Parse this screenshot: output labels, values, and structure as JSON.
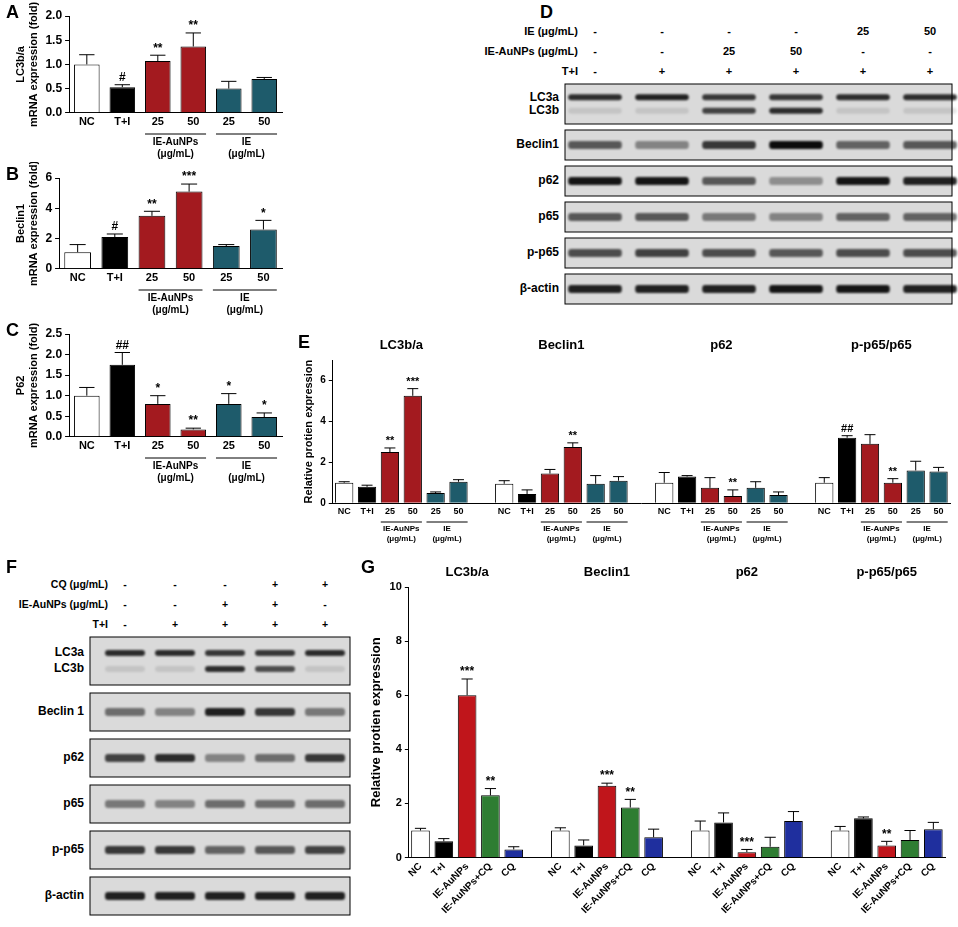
{
  "chart_data": [
    {
      "panel": "A",
      "type": "bar",
      "ylabel": [
        "LC3b/a",
        "mRNA expression (fold)"
      ],
      "categories": [
        "NC",
        "T+I",
        "25",
        "50",
        "25",
        "50"
      ],
      "values": [
        1.0,
        0.53,
        1.07,
        1.37,
        0.5,
        0.7
      ],
      "errors": [
        0.2,
        0.05,
        0.12,
        0.28,
        0.15,
        0.03
      ],
      "annotations": [
        null,
        "#",
        "**",
        "**",
        null,
        null
      ],
      "colors": [
        "#ffffff",
        "#000000",
        "#a31a1f",
        "#a31a1f",
        "#1e5b6b",
        "#1e5b6b"
      ],
      "subgroups": [
        {
          "label": [
            "IE-AuNPs",
            "(μg/mL)"
          ],
          "span": [
            2,
            3
          ]
        },
        {
          "label": [
            "IE",
            "(μg/mL)"
          ],
          "span": [
            4,
            5
          ]
        }
      ],
      "ylim": [
        0,
        2.0
      ],
      "yticks": [
        {
          "value": 0,
          "label": "0.0"
        },
        0.5,
        {
          "value": 1,
          "label": "1.0"
        },
        1.5,
        {
          "value": 2,
          "label": "2.0"
        }
      ],
      "grid": false
    },
    {
      "panel": "B",
      "type": "bar",
      "ylabel": [
        "Beclin1",
        "mRNA expression (fold)"
      ],
      "categories": [
        "NC",
        "T+I",
        "25",
        "50",
        "25",
        "50"
      ],
      "values": [
        1.1,
        2.1,
        3.5,
        5.1,
        1.5,
        2.6
      ],
      "errors": [
        0.5,
        0.2,
        0.3,
        0.5,
        0.1,
        0.6
      ],
      "annotations": [
        null,
        "#",
        "**",
        "***",
        null,
        "*"
      ],
      "colors": [
        "#ffffff",
        "#000000",
        "#a31a1f",
        "#a31a1f",
        "#1e5b6b",
        "#1e5b6b"
      ],
      "subgroups": [
        {
          "label": [
            "IE-AuNPs",
            "(μg/mL)"
          ],
          "span": [
            2,
            3
          ]
        },
        {
          "label": [
            "IE",
            "(μg/mL)"
          ],
          "span": [
            4,
            5
          ]
        }
      ],
      "ylim": [
        0,
        6
      ],
      "yticks": [
        0,
        2,
        4,
        6
      ],
      "grid": false
    },
    {
      "panel": "C",
      "type": "bar",
      "ylabel": [
        "P62",
        "mRNA expression (fold)"
      ],
      "categories": [
        "NC",
        "T+I",
        "25",
        "50",
        "25",
        "50"
      ],
      "values": [
        1.0,
        1.75,
        0.8,
        0.18,
        0.8,
        0.48
      ],
      "errors": [
        0.2,
        0.3,
        0.2,
        0.03,
        0.25,
        0.1
      ],
      "annotations": [
        null,
        "##",
        "*",
        "**",
        "*",
        "*"
      ],
      "colors": [
        "#ffffff",
        "#000000",
        "#a31a1f",
        "#a31a1f",
        "#1e5b6b",
        "#1e5b6b"
      ],
      "subgroups": [
        {
          "label": [
            "IE-AuNPs",
            "(μg/mL)"
          ],
          "span": [
            2,
            3
          ]
        },
        {
          "label": [
            "IE",
            "(μg/mL)"
          ],
          "span": [
            4,
            5
          ]
        }
      ],
      "ylim": [
        0,
        2.5
      ],
      "yticks": [
        {
          "value": 0,
          "label": "0.0"
        },
        0.5,
        {
          "value": 1,
          "label": "1.0"
        },
        1.5,
        {
          "value": 2,
          "label": "2.0"
        },
        2.5
      ],
      "grid": false
    },
    {
      "panel": "E",
      "type": "bar",
      "ylabel": "Relative protien expression",
      "categories": [
        "NC",
        "T+I",
        "25",
        "50",
        "25",
        "50",
        null,
        "NC",
        "T+I",
        "25",
        "50",
        "25",
        "50",
        null,
        "NC",
        "T+I",
        "25",
        "50",
        "25",
        "50",
        null,
        "NC",
        "T+I",
        "25",
        "50",
        "25",
        "50"
      ],
      "values": [
        1.0,
        0.8,
        2.5,
        5.25,
        0.5,
        1.05,
        null,
        0.95,
        0.45,
        1.45,
        2.75,
        0.95,
        1.1,
        null,
        1.0,
        1.3,
        0.75,
        0.35,
        0.75,
        0.4,
        null,
        1.0,
        3.2,
        2.9,
        1.0,
        1.6,
        1.55
      ],
      "errors": [
        0.05,
        0.08,
        0.2,
        0.35,
        0.05,
        0.1,
        null,
        0.15,
        0.2,
        0.2,
        0.2,
        0.4,
        0.2,
        null,
        0.5,
        0.05,
        0.5,
        0.3,
        0.3,
        0.15,
        null,
        0.25,
        0.1,
        0.45,
        0.2,
        0.45,
        0.2
      ],
      "annotations": [
        null,
        null,
        "**",
        "***",
        null,
        null,
        null,
        null,
        null,
        null,
        "**",
        null,
        null,
        null,
        null,
        null,
        null,
        "**",
        null,
        null,
        null,
        null,
        "##",
        null,
        "**",
        null,
        null
      ],
      "colors": [
        "#ffffff",
        "#000000",
        "#a31a1f",
        "#a31a1f",
        "#1e5b6b",
        "#1e5b6b",
        null,
        "#ffffff",
        "#000000",
        "#a31a1f",
        "#a31a1f",
        "#1e5b6b",
        "#1e5b6b",
        null,
        "#ffffff",
        "#000000",
        "#a31a1f",
        "#a31a1f",
        "#1e5b6b",
        "#1e5b6b",
        null,
        "#ffffff",
        "#000000",
        "#a31a1f",
        "#a31a1f",
        "#1e5b6b",
        "#1e5b6b"
      ],
      "groups": [
        {
          "label": "LC3b/a",
          "span": [
            0,
            5
          ]
        },
        {
          "label": "Beclin1",
          "span": [
            7,
            12
          ]
        },
        {
          "label": "p62",
          "span": [
            14,
            19
          ]
        },
        {
          "label": "p-p65/p65",
          "span": [
            21,
            26
          ]
        }
      ],
      "subgroups": [
        {
          "label": [
            "IE-AuNPs",
            "(μg/mL)"
          ],
          "span": [
            2,
            3
          ]
        },
        {
          "label": [
            "IE",
            "(μg/mL)"
          ],
          "span": [
            4,
            5
          ]
        },
        {
          "label": [
            "IE-AuNPs",
            "(μg/mL)"
          ],
          "span": [
            9,
            10
          ]
        },
        {
          "label": [
            "IE",
            "(μg/mL)"
          ],
          "span": [
            11,
            12
          ]
        },
        {
          "label": [
            "IE-AuNPs",
            "(μg/mL)"
          ],
          "span": [
            16,
            17
          ]
        },
        {
          "label": [
            "IE",
            "(μg/mL)"
          ],
          "span": [
            18,
            19
          ]
        },
        {
          "label": [
            "IE-AuNPs",
            "(μg/mL)"
          ],
          "span": [
            23,
            24
          ]
        },
        {
          "label": [
            "IE",
            "(μg/mL)"
          ],
          "span": [
            25,
            26
          ]
        }
      ],
      "ylim": [
        0,
        7
      ],
      "yticks": [
        0,
        2,
        4,
        6
      ],
      "grid": false
    },
    {
      "panel": "G",
      "type": "bar",
      "ylabel": "Relative protien expression",
      "categories": [
        "NC",
        "T+I",
        "IE-AuNPs",
        "IE-AuNPs+CQ",
        "CQ",
        null,
        "NC",
        "T+I",
        "IE-AuNPs",
        "IE-AuNPs+CQ",
        "CQ",
        null,
        "NC",
        "T+I",
        "IE-AuNPs",
        "IE-AuNPs+CQ",
        "CQ",
        null,
        "NC",
        "T+I",
        "IE-AuNPs",
        "IE-AuNPs+CQ",
        "CQ"
      ],
      "values": [
        1.0,
        0.6,
        6.0,
        2.3,
        0.3,
        null,
        1.0,
        0.45,
        2.65,
        1.85,
        0.75,
        null,
        1.0,
        1.3,
        0.2,
        0.4,
        1.35,
        null,
        1.0,
        1.45,
        0.45,
        0.65,
        1.05
      ],
      "errors": [
        0.08,
        0.1,
        0.6,
        0.25,
        0.1,
        null,
        0.1,
        0.2,
        0.1,
        0.3,
        0.3,
        null,
        0.35,
        0.35,
        0.1,
        0.35,
        0.35,
        null,
        0.15,
        0.05,
        0.15,
        0.35,
        0.25
      ],
      "annotations": [
        null,
        null,
        "***",
        "**",
        null,
        null,
        null,
        null,
        "***",
        "**",
        null,
        null,
        null,
        null,
        "***",
        null,
        null,
        null,
        null,
        null,
        "**",
        null,
        null
      ],
      "colors": [
        "#ffffff",
        "#000000",
        "#c0151b",
        "#2e7d32",
        "#1f2f9e",
        null,
        "#ffffff",
        "#000000",
        "#c0151b",
        "#2e7d32",
        "#1f2f9e",
        null,
        "#ffffff",
        "#000000",
        "#c0151b",
        "#2e7d32",
        "#1f2f9e",
        null,
        "#ffffff",
        "#000000",
        "#c0151b",
        "#2e7d32",
        "#1f2f9e"
      ],
      "groups": [
        {
          "label": "LC3b/a",
          "span": [
            0,
            4
          ]
        },
        {
          "label": "Beclin1",
          "span": [
            6,
            10
          ]
        },
        {
          "label": "p62",
          "span": [
            12,
            16
          ]
        },
        {
          "label": "p-p65/p65",
          "span": [
            18,
            22
          ]
        }
      ],
      "ylim": [
        0,
        10
      ],
      "yticks": [
        0,
        2,
        4,
        6,
        8,
        10
      ],
      "grid": false
    }
  ],
  "blots": [
    {
      "panel": "D",
      "conditions": [
        {
          "label": "IE (μg/mL)",
          "values": [
            "-",
            "-",
            "-",
            "-",
            "25",
            "50"
          ]
        },
        {
          "label": "IE-AuNPs (μg/mL)",
          "values": [
            "-",
            "-",
            "25",
            "50",
            "-",
            "-"
          ]
        },
        {
          "label": "T+I",
          "values": [
            "-",
            "+",
            "+",
            "+",
            "+",
            "+"
          ]
        }
      ],
      "rows": [
        {
          "labels": [
            "LC3a",
            "LC3b"
          ],
          "bands": [
            [
              0.8,
              0.85,
              0.75,
              0.75,
              0.8,
              0.8
            ],
            [
              0.1,
              0.1,
              0.7,
              0.8,
              0.1,
              0.1
            ]
          ]
        },
        {
          "labels": [
            "Beclin1"
          ],
          "bands": [
            [
              0.6,
              0.4,
              0.75,
              0.95,
              0.55,
              0.6
            ]
          ]
        },
        {
          "labels": [
            "p62"
          ],
          "bands": [
            [
              0.9,
              0.9,
              0.6,
              0.35,
              0.9,
              0.85
            ]
          ]
        },
        {
          "labels": [
            "p65"
          ],
          "bands": [
            [
              0.6,
              0.6,
              0.45,
              0.4,
              0.55,
              0.55
            ]
          ]
        },
        {
          "labels": [
            "p-p65"
          ],
          "bands": [
            [
              0.65,
              0.7,
              0.65,
              0.6,
              0.65,
              0.65
            ]
          ]
        },
        {
          "labels": [
            "β-actin"
          ],
          "bands": [
            [
              0.85,
              0.85,
              0.85,
              0.9,
              0.9,
              0.85
            ]
          ]
        }
      ]
    },
    {
      "panel": "F",
      "conditions": [
        {
          "label": "CQ (μg/mL)",
          "values": [
            "-",
            "-",
            "-",
            "+",
            "+"
          ]
        },
        {
          "label": "IE-AuNPs (μg/mL)",
          "values": [
            "-",
            "-",
            "+",
            "+",
            "-"
          ]
        },
        {
          "label": "T+I",
          "values": [
            "-",
            "+",
            "+",
            "+",
            "+"
          ]
        }
      ],
      "rows": [
        {
          "labels": [
            "LC3a",
            "LC3b"
          ],
          "bands": [
            [
              0.8,
              0.8,
              0.75,
              0.75,
              0.8
            ],
            [
              0.1,
              0.1,
              0.8,
              0.65,
              0.1
            ]
          ]
        },
        {
          "labels": [
            "Beclin 1"
          ],
          "bands": [
            [
              0.5,
              0.4,
              0.85,
              0.75,
              0.45
            ]
          ]
        },
        {
          "labels": [
            "p62"
          ],
          "bands": [
            [
              0.7,
              0.8,
              0.4,
              0.5,
              0.75
            ]
          ]
        },
        {
          "labels": [
            "p65"
          ],
          "bands": [
            [
              0.45,
              0.4,
              0.5,
              0.5,
              0.5
            ]
          ]
        },
        {
          "labels": [
            "p-p65"
          ],
          "bands": [
            [
              0.75,
              0.75,
              0.55,
              0.6,
              0.7
            ]
          ]
        },
        {
          "labels": [
            "β-actin"
          ],
          "bands": [
            [
              0.85,
              0.85,
              0.85,
              0.85,
              0.85
            ]
          ]
        }
      ]
    }
  ]
}
